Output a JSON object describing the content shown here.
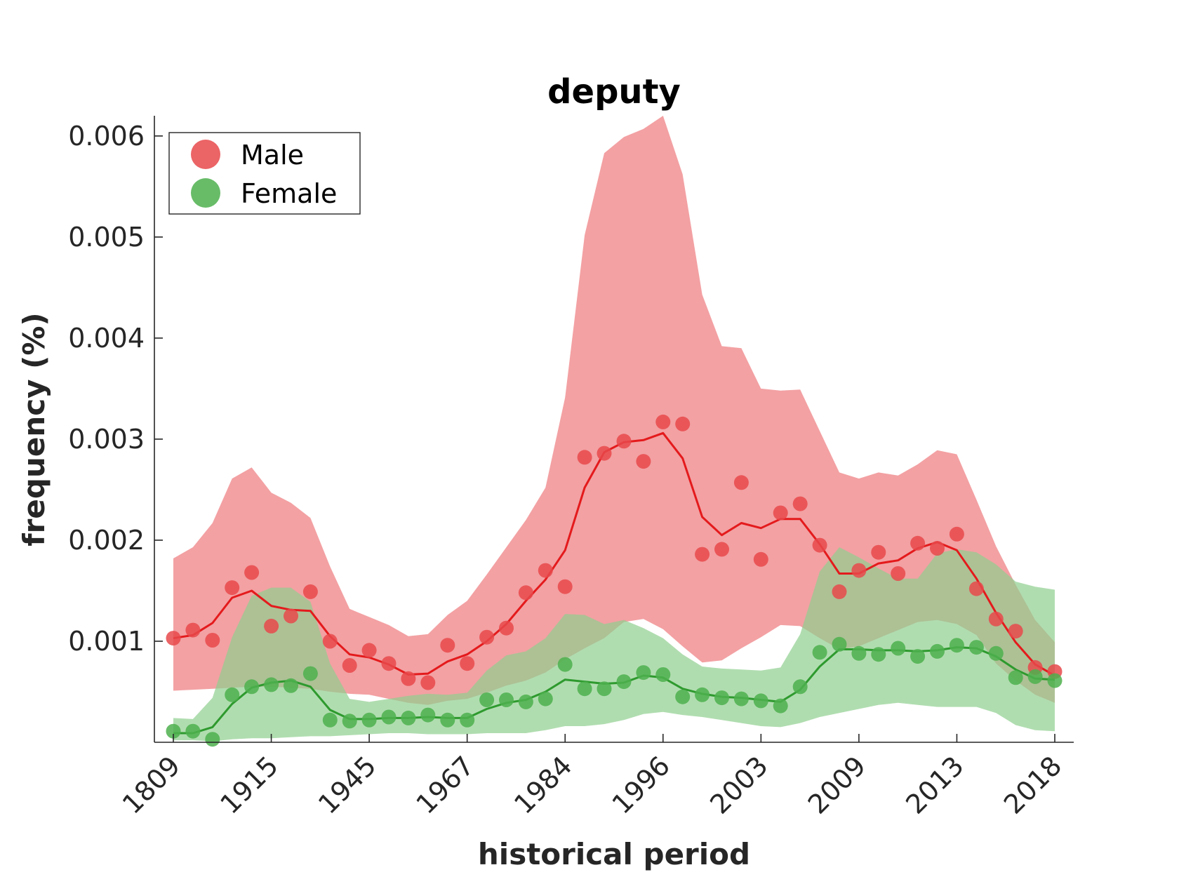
{
  "chart_data": {
    "type": "line",
    "title": "deputy",
    "xlabel": "historical period",
    "ylabel": "frequency (%)",
    "x_tick_labels": [
      "1809",
      "1915",
      "1945",
      "1967",
      "1984",
      "1996",
      "2003",
      "2009",
      "2013",
      "2018"
    ],
    "y_ticks": [
      0.001,
      0.002,
      0.003,
      0.004,
      0.005,
      0.006
    ],
    "y_tick_labels": [
      "0.001",
      "0.002",
      "0.003",
      "0.004",
      "0.005",
      "0.006"
    ],
    "ylim": [
      0.0,
      0.0062
    ],
    "legend_position": "top-left",
    "colors": {
      "male_line": "#e41a1c",
      "male_points": "#e8494b",
      "male_band": "#f19193",
      "female_line": "#2e9a2e",
      "female_points": "#4eb04e",
      "female_band": "#8fcf8f",
      "axis": "#262626"
    },
    "series": [
      {
        "name": "Male",
        "points": [
          0.00103,
          0.00111,
          0.00101,
          0.00153,
          0.00168,
          0.00115,
          0.00125,
          0.00149,
          0.001,
          0.00076,
          0.00091,
          0.00078,
          0.00063,
          0.00059,
          0.00096,
          0.00078,
          0.00104,
          0.00113,
          0.00148,
          0.0017,
          0.00154,
          0.00282,
          0.00286,
          0.00298,
          0.00278,
          0.00317,
          0.00315,
          0.00186,
          0.00191,
          0.00257,
          0.00181,
          0.00227,
          0.00236,
          0.00195,
          0.00149,
          0.0017,
          0.00188,
          0.00167,
          0.00197,
          0.00192,
          0.00206,
          0.00152,
          0.00122,
          0.0011,
          0.00074,
          0.0007
        ],
        "smoothed": [
          0.00103,
          0.00106,
          0.00118,
          0.00143,
          0.0015,
          0.00135,
          0.00131,
          0.0013,
          0.00105,
          0.00087,
          0.00084,
          0.00077,
          0.00067,
          0.00068,
          0.0008,
          0.00087,
          0.001,
          0.00117,
          0.0014,
          0.00161,
          0.0019,
          0.00252,
          0.00287,
          0.00297,
          0.00299,
          0.00306,
          0.00281,
          0.00223,
          0.00205,
          0.00217,
          0.00212,
          0.00221,
          0.00221,
          0.00196,
          0.00167,
          0.00167,
          0.00177,
          0.0018,
          0.00192,
          0.00198,
          0.0019,
          0.00162,
          0.00128,
          0.00099,
          0.00077,
          0.00066
        ],
        "band_upper": [
          0.00182,
          0.00193,
          0.00217,
          0.00261,
          0.00272,
          0.00247,
          0.00237,
          0.00222,
          0.00174,
          0.00132,
          0.00124,
          0.00116,
          0.00105,
          0.00107,
          0.00126,
          0.0014,
          0.00166,
          0.00193,
          0.0022,
          0.00252,
          0.00341,
          0.00502,
          0.00583,
          0.00599,
          0.00607,
          0.0062,
          0.00562,
          0.00443,
          0.00392,
          0.0039,
          0.0035,
          0.00348,
          0.00349,
          0.00308,
          0.00267,
          0.00261,
          0.00267,
          0.00264,
          0.00275,
          0.00289,
          0.00285,
          0.0024,
          0.00194,
          0.00156,
          0.00121,
          0.00099
        ],
        "band_lower": [
          0.00051,
          0.00052,
          0.00053,
          0.00054,
          0.00055,
          0.00055,
          0.00054,
          0.00053,
          0.0005,
          0.00048,
          0.00047,
          0.00043,
          0.00039,
          0.00037,
          0.00041,
          0.00043,
          0.00049,
          0.00056,
          0.00061,
          0.00069,
          0.00082,
          0.00093,
          0.00103,
          0.00119,
          0.00122,
          0.00112,
          0.00095,
          0.00079,
          0.00081,
          0.00093,
          0.00104,
          0.00116,
          0.00115,
          0.00103,
          0.00092,
          0.00095,
          0.00103,
          0.00111,
          0.00119,
          0.00121,
          0.00117,
          0.00106,
          0.00078,
          0.00061,
          0.00047,
          0.00039
        ]
      },
      {
        "name": "Female",
        "points": [
          0.00011,
          0.00011,
          3e-05,
          0.00047,
          0.00055,
          0.00057,
          0.00056,
          0.00068,
          0.00022,
          0.00021,
          0.00022,
          0.00025,
          0.00024,
          0.00027,
          0.00022,
          0.00022,
          0.00042,
          0.00042,
          0.0004,
          0.00043,
          0.00077,
          0.00053,
          0.00053,
          0.0006,
          0.00069,
          0.00067,
          0.00045,
          0.00047,
          0.00044,
          0.00043,
          0.00041,
          0.00036,
          0.00055,
          0.00089,
          0.00097,
          0.00088,
          0.00087,
          0.00093,
          0.00085,
          0.0009,
          0.00096,
          0.00094,
          0.00088,
          0.00064,
          0.00065,
          0.00061
        ],
        "smoothed": [
          9e-05,
          9e-05,
          0.00015,
          0.00038,
          0.00054,
          0.00059,
          0.00061,
          0.00055,
          0.00032,
          0.00023,
          0.00023,
          0.00024,
          0.00024,
          0.00025,
          0.00024,
          0.00024,
          0.00033,
          0.00039,
          0.00042,
          0.0005,
          0.00062,
          0.0006,
          0.00058,
          0.00059,
          0.00066,
          0.00064,
          0.00053,
          0.00048,
          0.00045,
          0.00044,
          0.00042,
          0.0004,
          0.00052,
          0.00075,
          0.00092,
          0.00092,
          0.00091,
          0.00091,
          0.0009,
          0.00091,
          0.00094,
          0.00093,
          0.00085,
          0.00072,
          0.00063,
          0.00062
        ],
        "band_upper": [
          0.00024,
          0.00023,
          0.00044,
          0.00104,
          0.00145,
          0.00153,
          0.00153,
          0.00139,
          0.00078,
          0.00043,
          0.0004,
          0.00043,
          0.00046,
          0.00048,
          0.00047,
          0.00049,
          0.00071,
          0.00086,
          0.0009,
          0.00103,
          0.00127,
          0.00126,
          0.00117,
          0.00121,
          0.00113,
          0.00103,
          0.00087,
          0.00075,
          0.00073,
          0.00072,
          0.00071,
          0.00074,
          0.00107,
          0.00169,
          0.00193,
          0.00183,
          0.00172,
          0.00162,
          0.00162,
          0.00187,
          0.00191,
          0.00188,
          0.00176,
          0.00159,
          0.00154,
          0.00151
        ],
        "band_lower": [
          2e-05,
          2e-05,
          1e-05,
          3e-05,
          4e-05,
          4e-05,
          5e-05,
          6e-05,
          6e-05,
          7e-05,
          8e-05,
          9e-05,
          9e-05,
          8e-05,
          8e-05,
          8e-05,
          9e-05,
          9e-05,
          9e-05,
          0.00012,
          0.00016,
          0.00016,
          0.00018,
          0.00022,
          0.00028,
          0.0003,
          0.00027,
          0.00025,
          0.00022,
          0.00019,
          0.00016,
          0.00015,
          0.00019,
          0.00025,
          0.00029,
          0.00033,
          0.00037,
          0.00039,
          0.00037,
          0.00035,
          0.00035,
          0.00035,
          0.00029,
          0.00017,
          0.00012,
          0.00011
        ]
      }
    ]
  }
}
